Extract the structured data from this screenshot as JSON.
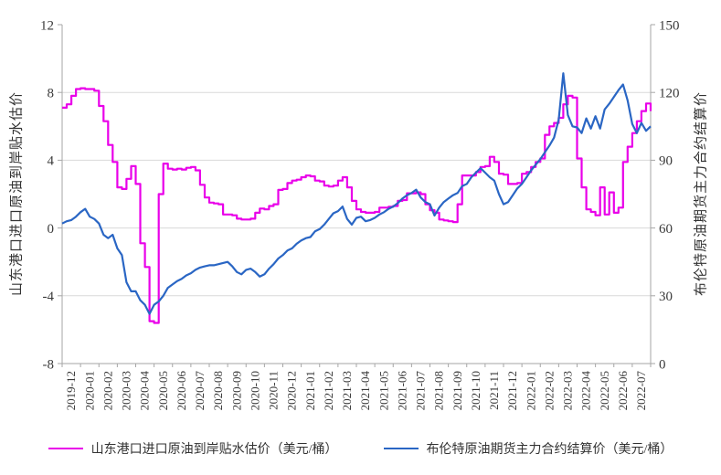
{
  "chart_data": {
    "type": "line",
    "grid": true,
    "legend_position": "bottom",
    "sample_interval_months": 0.25,
    "x_start": "2019-12",
    "left_axis": {
      "label": "山东港口进口原油到岸贴水估价",
      "min": -8,
      "max": 12,
      "ticks": [
        12,
        8,
        4,
        0,
        -4,
        -8
      ]
    },
    "right_axis": {
      "label": "布伦特原油期货主力合约结算价",
      "min": 0,
      "max": 150,
      "ticks": [
        150,
        120,
        90,
        60,
        30,
        0
      ]
    },
    "x_tick_labels": [
      "2019-12",
      "2020-01",
      "2020-02",
      "2020-03",
      "2020-04",
      "2020-05",
      "2020-06",
      "2020-07",
      "2020-08",
      "2020-09",
      "2020-10",
      "2020-11",
      "2020-12",
      "2021-01",
      "2021-02",
      "2021-03",
      "2021-04",
      "2021-05",
      "2021-06",
      "2021-07",
      "2021-08",
      "2021-09",
      "2021-10",
      "2021-11",
      "2021-12",
      "2022-01",
      "2022-02",
      "2022-03",
      "2022-04",
      "2022-05",
      "2022-06",
      "2022-07"
    ],
    "colors": {
      "grid": "#D9D9D9",
      "axis": "#A6A6A6",
      "text": "#3a3a3a"
    },
    "series": [
      {
        "name": "山东港口进口原油到岸贴水估价（美元/桶）",
        "axis": "left",
        "color": "#E900E9",
        "line_style": "step",
        "values": [
          7.1,
          7.3,
          7.8,
          8.2,
          8.25,
          8.2,
          8.2,
          8.1,
          7.2,
          6.3,
          4.9,
          3.9,
          2.4,
          2.3,
          2.9,
          3.65,
          2.6,
          -0.9,
          -2.3,
          -5.5,
          -5.6,
          2.0,
          3.8,
          3.5,
          3.45,
          3.5,
          3.45,
          3.55,
          3.6,
          3.4,
          2.55,
          1.8,
          1.5,
          1.45,
          1.4,
          0.8,
          0.8,
          0.75,
          0.55,
          0.5,
          0.5,
          0.55,
          0.9,
          1.15,
          1.1,
          1.3,
          1.4,
          2.25,
          2.3,
          2.65,
          2.8,
          2.85,
          3.0,
          3.1,
          3.05,
          2.8,
          2.75,
          2.5,
          2.45,
          2.5,
          2.8,
          3.0,
          2.4,
          1.6,
          1.1,
          0.95,
          0.9,
          0.9,
          0.95,
          1.2,
          1.2,
          1.25,
          1.3,
          1.6,
          1.65,
          2.05,
          2.05,
          2.1,
          2.0,
          1.4,
          1.05,
          0.9,
          0.5,
          0.45,
          0.4,
          0.35,
          1.4,
          3.1,
          3.1,
          3.1,
          3.3,
          3.6,
          3.65,
          4.2,
          3.9,
          3.2,
          3.15,
          2.6,
          2.6,
          2.65,
          3.2,
          3.3,
          3.6,
          3.9,
          4.1,
          5.5,
          6.0,
          6.2,
          6.5,
          7.3,
          7.8,
          7.7,
          4.1,
          2.4,
          1.1,
          0.95,
          0.75,
          2.4,
          0.8,
          2.1,
          0.9,
          1.2,
          3.9,
          4.8,
          5.6,
          6.3,
          6.9,
          7.35,
          6.9
        ]
      },
      {
        "name": "布伦特原油期货主力合约结算价（美元/桶）",
        "axis": "right",
        "color": "#2A66C4",
        "line_style": "linear",
        "values": [
          62,
          63,
          63.5,
          65,
          67,
          68.5,
          65,
          64,
          62,
          57,
          55.5,
          57,
          51,
          48,
          36,
          32,
          32,
          28,
          26,
          22,
          26,
          27.5,
          30,
          33.5,
          35,
          36.5,
          37.5,
          39,
          40,
          41.5,
          42.5,
          43,
          43.5,
          43.5,
          44,
          44.5,
          45,
          43,
          40.5,
          39.5,
          41.5,
          42,
          40.5,
          38.5,
          39.5,
          42,
          44,
          46.5,
          48,
          50,
          51,
          53,
          54.5,
          55.5,
          56,
          58.5,
          59.5,
          61.5,
          64,
          66.5,
          67.5,
          69.5,
          64,
          61.5,
          64.5,
          65,
          63,
          63.5,
          64.5,
          66,
          67,
          68.5,
          69.5,
          71,
          73,
          74.5,
          75.5,
          77,
          73.5,
          71.5,
          70.5,
          65.5,
          69,
          71.5,
          73,
          74.5,
          75.5,
          78.5,
          79.5,
          82.5,
          84.5,
          86.5,
          84.5,
          82.5,
          81,
          75,
          70.5,
          71.5,
          74.5,
          77.5,
          79.5,
          82.5,
          85.5,
          88,
          90.5,
          93.5,
          96.5,
          100,
          108,
          128.5,
          110,
          105,
          104.5,
          102,
          108.5,
          104,
          109.5,
          104,
          112.5,
          115,
          118,
          121,
          123.5,
          116.5,
          106,
          102,
          106.5,
          103,
          105
        ]
      }
    ]
  }
}
